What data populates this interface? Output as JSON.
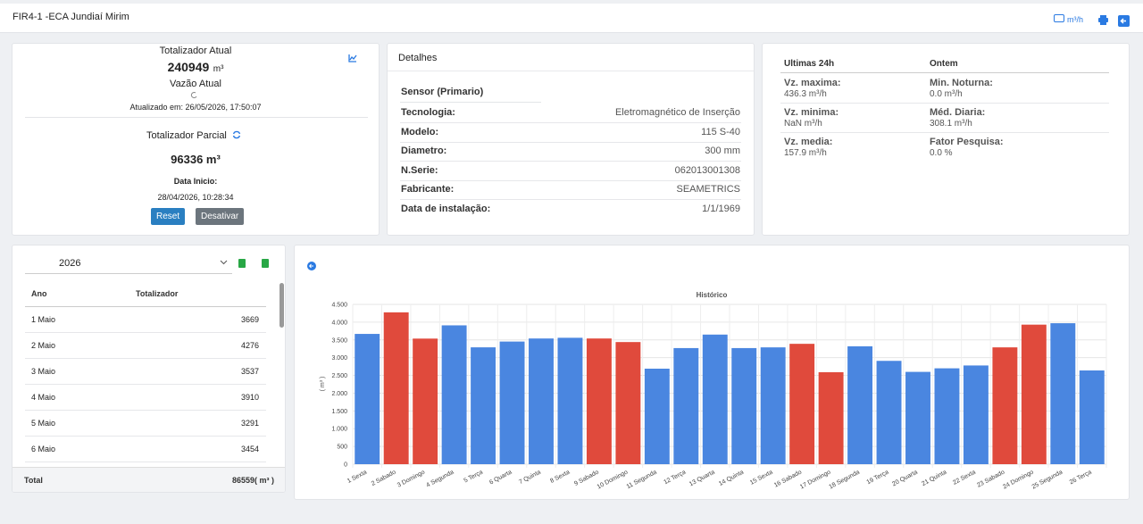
{
  "header": {
    "title": "FIR4-1 -ECA Jundiaí Mirim",
    "unit_toggle": "m³/h"
  },
  "totalizer": {
    "title": "Totalizador Atual",
    "value": "240949",
    "unit": "m³",
    "flow_title": "Vazão Atual",
    "updated": "Atualizado em: 26/05/2026, 17:50:07",
    "partial_title": "Totalizador Parcial",
    "partial_value": "96336 m³",
    "start_label": "Data Inicio:",
    "start_date": "28/04/2026, 10:28:34",
    "buttons": [
      "Reset",
      "Desativar"
    ]
  },
  "details": {
    "title": "Detalhes",
    "section": "Sensor (Primario)",
    "rows": [
      [
        "Tecnologia:",
        "Eletromagnético de Inserção"
      ],
      [
        "Modelo:",
        "115 S-40"
      ],
      [
        "Diametro:",
        "300 mm"
      ],
      [
        "N.Serie:",
        "062013001308"
      ],
      [
        "Fabricante:",
        "SEAMETRICS"
      ],
      [
        "Data de instalação:",
        "1/1/1969"
      ]
    ]
  },
  "last24h": {
    "headers": [
      "Ultimas 24h",
      "Ontem"
    ],
    "items": [
      [
        "Vz. maxima:",
        "436.3 m³/h"
      ],
      [
        "Min. Noturna:",
        "0.0 m³/h"
      ],
      [
        "Vz. minima:",
        "NaN m³/h"
      ],
      [
        "Méd. Diaria:",
        "308.1 m³/h"
      ],
      [
        "Vz. media:",
        "157.9 m³/h"
      ],
      [
        "Fator Pesquisa:",
        "0.0 %"
      ]
    ]
  },
  "history_table": {
    "year": "2026",
    "columns": [
      "Ano",
      "Totalizador"
    ],
    "rows": [
      "1 Maio",
      "2 Maio",
      "3 Maio",
      "4 Maio",
      "5 Maio",
      "6 Maio"
    ],
    "total_label": "Total",
    "total": "86559( m³ )"
  },
  "chart_data": {
    "type": "bar",
    "title": "Histórico",
    "y_label": "( m³ )",
    "categories": [
      "1 Sexta",
      "2 Sabado",
      "3 Domingo",
      "4 Segunda",
      "5 Terça",
      "6 Quarta",
      "7 Quinta",
      "8 Sexta",
      "9 Sabado",
      "10 Domingo",
      "11 Segunda",
      "12 Terça",
      "13 Quarta",
      "14 Quinta",
      "15 Sexta",
      "16 Sabado",
      "17 Domingo",
      "18 Segunda",
      "19 Terça",
      "20 Quarta",
      "21 Quinta",
      "22 Sexta",
      "23 Sabado",
      "24 Domingo",
      "25 Segunda",
      "26 Terça"
    ],
    "values": [
      3669,
      4276,
      3537,
      3910,
      3291,
      3454,
      3540,
      3560,
      3540,
      3440,
      2690,
      3270,
      3650,
      3270,
      3290,
      3390,
      2590,
      3320,
      2910,
      2600,
      2700,
      2780,
      3290,
      3930,
      3970,
      2640
    ],
    "colors": [
      "#4a86e0",
      "#e04a3c",
      "#e04a3c",
      "#4a86e0",
      "#4a86e0",
      "#4a86e0",
      "#4a86e0",
      "#4a86e0",
      "#e04a3c",
      "#e04a3c",
      "#4a86e0",
      "#4a86e0",
      "#4a86e0",
      "#4a86e0",
      "#4a86e0",
      "#e04a3c",
      "#e04a3c",
      "#4a86e0",
      "#4a86e0",
      "#4a86e0",
      "#4a86e0",
      "#4a86e0",
      "#e04a3c",
      "#e04a3c",
      "#4a86e0",
      "#4a86e0"
    ],
    "ylim": [
      0,
      4500
    ],
    "yticks": [
      0,
      500,
      {
        "value": 1000,
        "label": "1.000"
      },
      {
        "value": 1500,
        "label": "1.500"
      },
      {
        "value": 2000,
        "label": "2.000"
      },
      {
        "value": 2500,
        "label": "2.500"
      },
      {
        "value": 3000,
        "label": "3.000"
      },
      {
        "value": 3500,
        "label": "3.500"
      },
      {
        "value": 4000,
        "label": "4.000"
      },
      {
        "value": 4500,
        "label": "4.500"
      }
    ],
    "grid": true
  }
}
